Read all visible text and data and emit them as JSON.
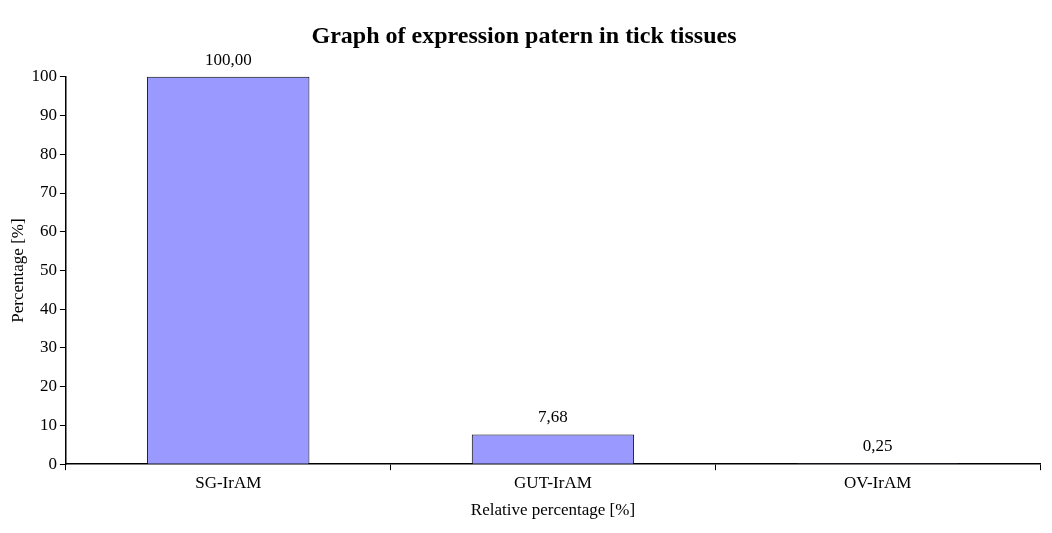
{
  "chart_data": {
    "type": "bar",
    "title": "Graph of expression patern in tick tissues",
    "xlabel": "Relative percentage [%]",
    "ylabel": "Percentage [%]",
    "categories": [
      "SG-IrAM",
      "GUT-IrAM",
      "OV-IrAM"
    ],
    "values": [
      100,
      7.68,
      0.25
    ],
    "value_labels": [
      "100,00",
      "7,68",
      "0,25"
    ],
    "color": "#9999ff",
    "ylim": [
      0,
      100
    ],
    "yticks": [
      0,
      10,
      20,
      30,
      40,
      50,
      60,
      70,
      80,
      90,
      100
    ],
    "grid": false,
    "legend": false
  }
}
